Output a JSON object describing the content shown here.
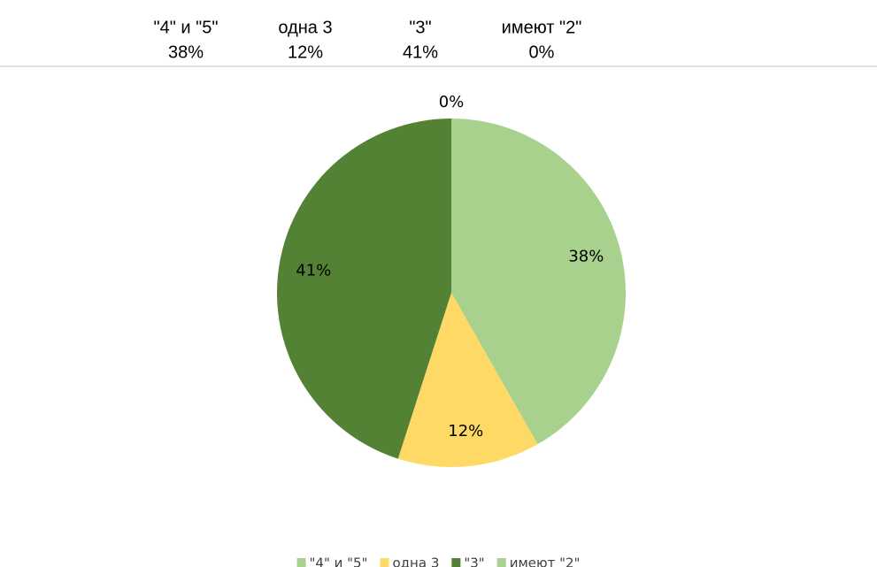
{
  "table": {
    "columns": [
      "\"4\" и \"5\"",
      "одна 3",
      "\"3\"",
      "имеют \"2\""
    ],
    "rows": [
      [
        "38%",
        "12%",
        "41%",
        "0%"
      ]
    ]
  },
  "chart_data": {
    "type": "pie",
    "categories": [
      "\"4\" и \"5\"",
      "одна 3",
      "\"3\"",
      "имеют \"2\""
    ],
    "values": [
      38,
      12,
      41,
      0
    ],
    "value_labels": [
      "38%",
      "12%",
      "41%",
      "0%"
    ],
    "colors": [
      "#a9d18e",
      "#ffd966",
      "#548235",
      "#a9d18e"
    ],
    "legend": "bottom"
  }
}
